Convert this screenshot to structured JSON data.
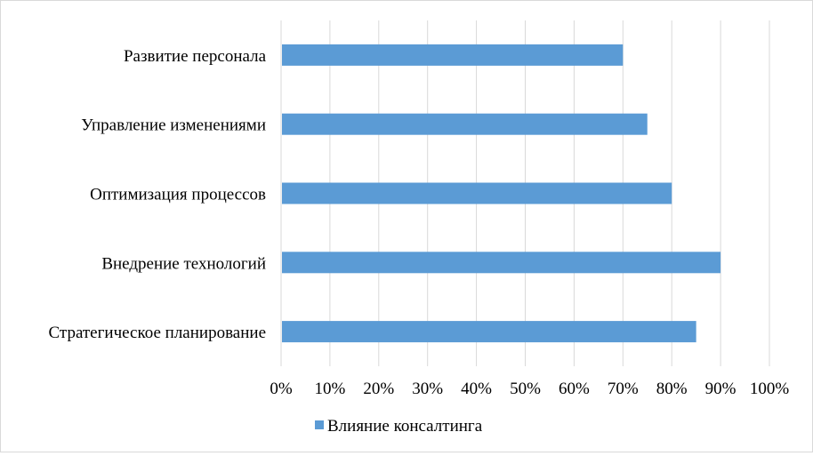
{
  "chart_data": {
    "type": "bar",
    "orientation": "horizontal",
    "categories": [
      "Развитие персонала",
      "Управление изменениями",
      "Оптимизация процессов",
      "Внедрение технологий",
      "Стратегическое планирование"
    ],
    "series": [
      {
        "name": "Влияние консалтинга",
        "values": [
          0.7,
          0.75,
          0.8,
          0.9,
          0.85
        ],
        "color": "#5b9bd5"
      }
    ],
    "x_ticks": [
      "0%",
      "10%",
      "20%",
      "30%",
      "40%",
      "50%",
      "60%",
      "70%",
      "80%",
      "90%",
      "100%"
    ],
    "xlim": [
      0,
      1
    ],
    "grid": "vertical",
    "gridline_color": "#d9d9d9",
    "legend_position": "bottom"
  }
}
